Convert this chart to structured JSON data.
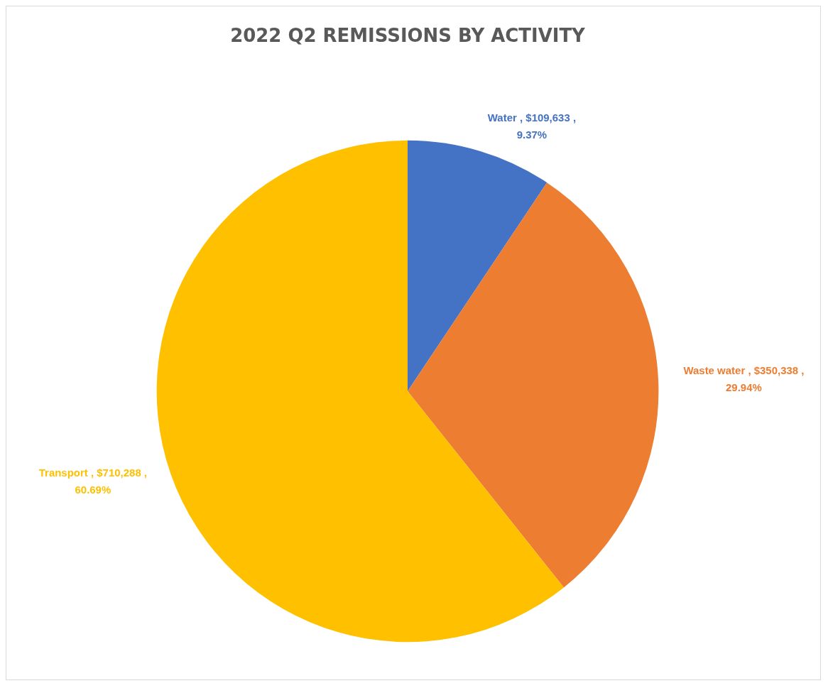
{
  "chart_data": {
    "type": "pie",
    "title": "2022 Q2 REMISSIONS BY ACTIVITY",
    "categories": [
      "Water",
      "Waste water",
      "Transport"
    ],
    "values": [
      109633,
      350338,
      710288
    ],
    "colors": [
      "#4472c4",
      "#ed7d31",
      "#ffc000"
    ],
    "value_labels": [
      "$109,633 , 9.37%",
      "$350,338 , 29.94%",
      "$710,288 , 60.69%"
    ],
    "legend": false
  }
}
